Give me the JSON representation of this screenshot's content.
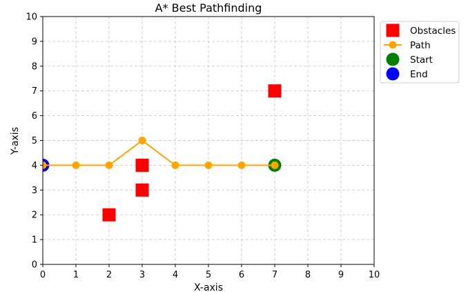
{
  "chart_data": {
    "type": "scatter",
    "title": "A* Best Pathfinding",
    "xlabel": "X-axis",
    "ylabel": "Y-axis",
    "xlim": [
      0,
      10
    ],
    "ylim": [
      0,
      10
    ],
    "xticks": [
      "0",
      "1",
      "2",
      "3",
      "4",
      "5",
      "6",
      "7",
      "8",
      "9",
      "10"
    ],
    "yticks": [
      "0",
      "1",
      "2",
      "3",
      "4",
      "5",
      "6",
      "7",
      "8",
      "9",
      "10"
    ],
    "grid": true,
    "legend_position": "top-right",
    "series": [
      {
        "name": "Obstacles",
        "marker": "square",
        "color": "#ff0000",
        "points": [
          [
            2,
            2
          ],
          [
            3,
            3
          ],
          [
            3,
            4
          ],
          [
            7,
            7
          ]
        ]
      },
      {
        "name": "Path",
        "marker": "circle-line",
        "color": "#ffa500",
        "points": [
          [
            7,
            4
          ],
          [
            6,
            4
          ],
          [
            5,
            4
          ],
          [
            4,
            4
          ],
          [
            3,
            5
          ],
          [
            2,
            4
          ],
          [
            1,
            4
          ],
          [
            0,
            4
          ]
        ]
      },
      {
        "name": "Start",
        "marker": "circle",
        "color": "#008000",
        "points": [
          [
            7,
            4
          ]
        ]
      },
      {
        "name": "End",
        "marker": "circle",
        "color": "#0000ff",
        "points": [
          [
            0,
            4
          ]
        ]
      }
    ]
  }
}
